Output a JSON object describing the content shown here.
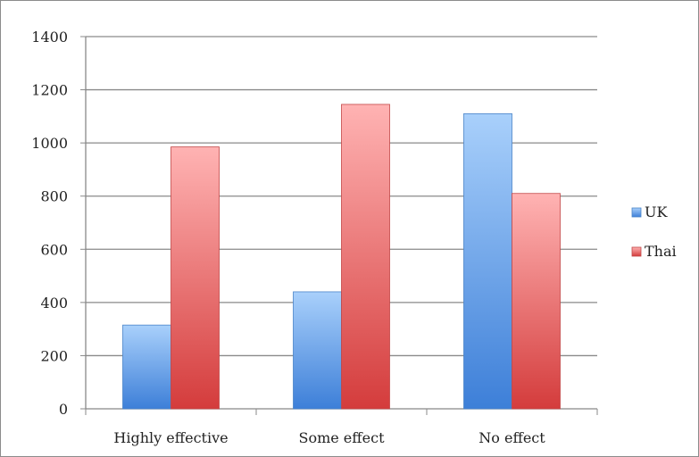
{
  "chart_data": {
    "type": "bar",
    "categories": [
      "Highly effective",
      "Some effect",
      "No effect"
    ],
    "series": [
      {
        "name": "UK",
        "values": [
          315,
          440,
          1110
        ],
        "color": "#5b9be0"
      },
      {
        "name": "Thai",
        "values": [
          985,
          1145,
          810
        ],
        "color": "#e05a5a"
      }
    ],
    "ylim": [
      0,
      1400
    ],
    "yticks": [
      "0",
      "200",
      "400",
      "600",
      "800",
      "1000",
      "1200",
      "1400"
    ],
    "grid": true,
    "legend": "right"
  }
}
